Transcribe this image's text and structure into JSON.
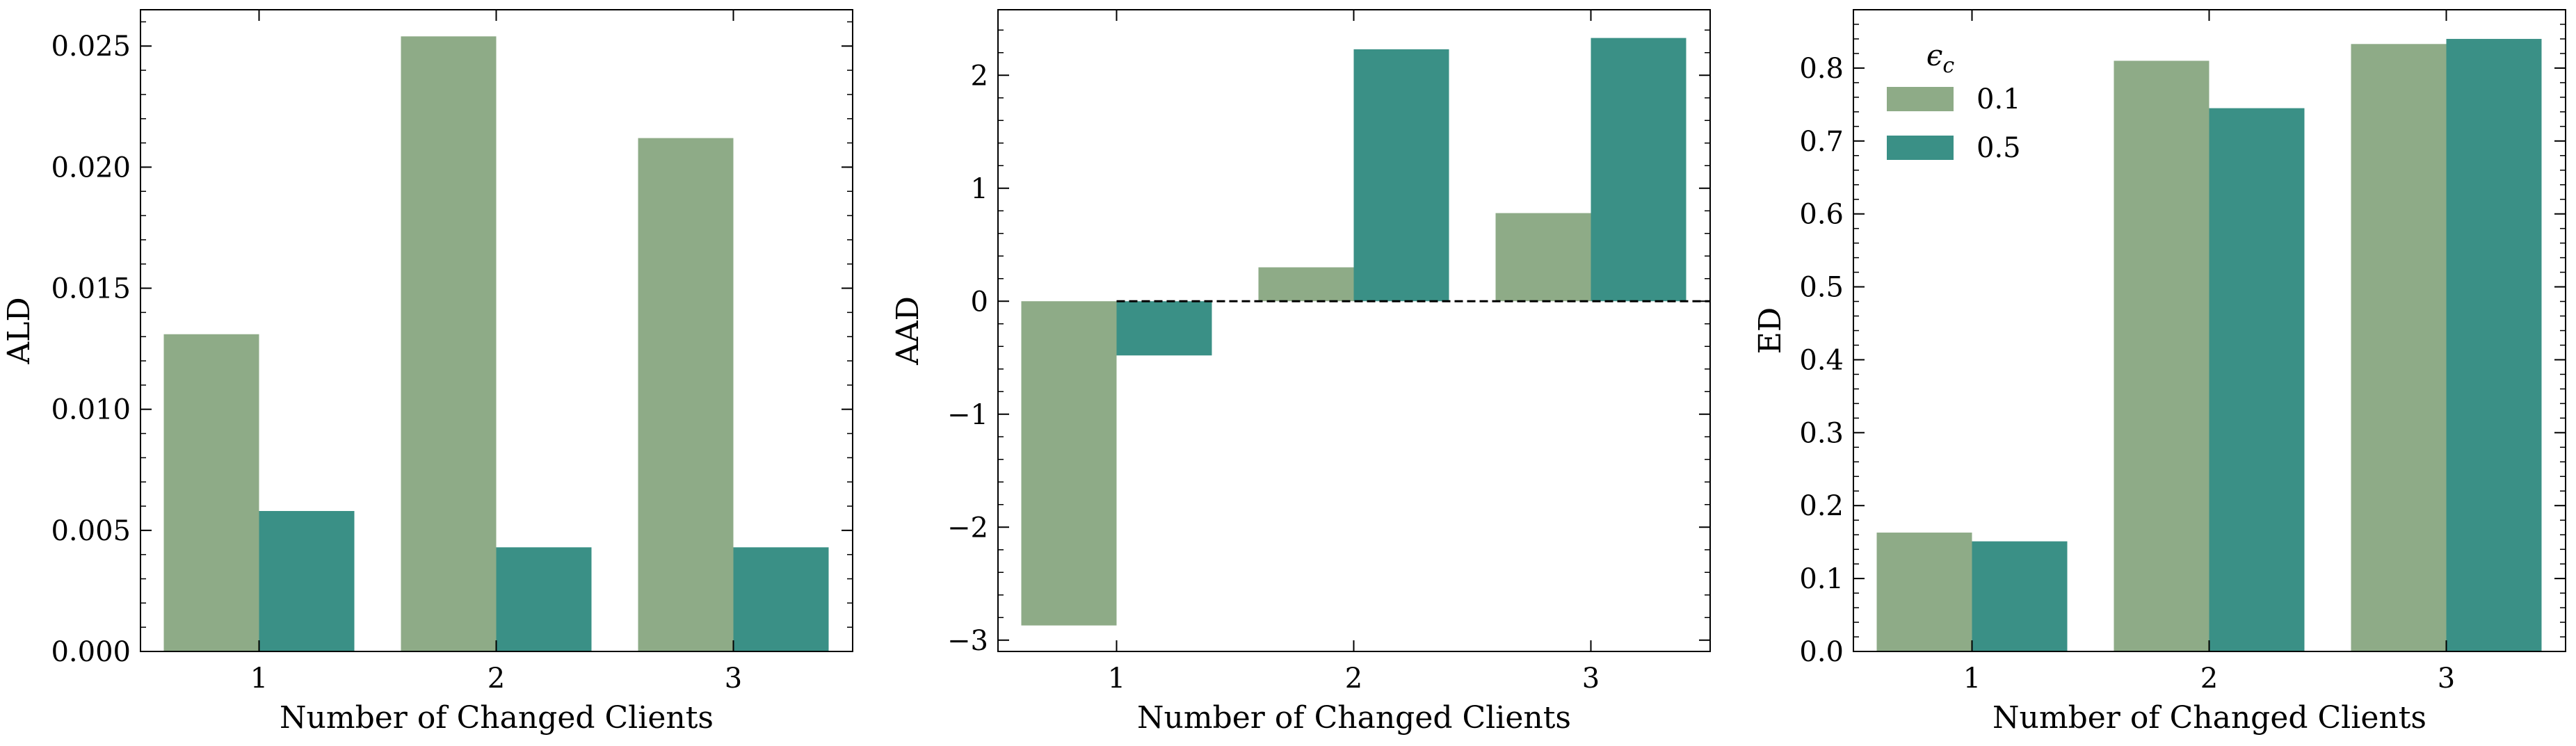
{
  "chart_data": [
    {
      "type": "bar",
      "categories": [
        "1",
        "2",
        "3"
      ],
      "series": [
        {
          "name": "0.1",
          "values": [
            0.0131,
            0.0254,
            0.0212
          ]
        },
        {
          "name": "0.5",
          "values": [
            0.0058,
            0.0043,
            0.0043
          ]
        }
      ],
      "xlabel": "Number of Changed Clients",
      "ylabel": "ALD",
      "ylim": [
        0,
        0.0265
      ],
      "yticks": [
        0.0,
        0.005,
        0.01,
        0.015,
        0.02,
        0.025
      ],
      "ytick_labels": [
        "0.000",
        "0.005",
        "0.010",
        "0.015",
        "0.020",
        "0.025"
      ],
      "grid": false,
      "zero_line": false
    },
    {
      "type": "bar",
      "categories": [
        "1",
        "2",
        "3"
      ],
      "series": [
        {
          "name": "0.1",
          "values": [
            -2.87,
            0.3,
            0.78
          ]
        },
        {
          "name": "0.5",
          "values": [
            -0.48,
            2.23,
            2.33
          ]
        }
      ],
      "xlabel": "Number of Changed Clients",
      "ylabel": "AAD",
      "ylim": [
        -3.1,
        2.58
      ],
      "yticks": [
        -3,
        -2,
        -1,
        0,
        1,
        2
      ],
      "ytick_labels": [
        "−3",
        "−2",
        "−1",
        "0",
        "1",
        "2"
      ],
      "grid": false,
      "zero_line": true
    },
    {
      "type": "bar",
      "categories": [
        "1",
        "2",
        "3"
      ],
      "series": [
        {
          "name": "0.1",
          "values": [
            0.163,
            0.81,
            0.833
          ]
        },
        {
          "name": "0.5",
          "values": [
            0.151,
            0.745,
            0.84
          ]
        }
      ],
      "xlabel": "Number of Changed Clients",
      "ylabel": "ED",
      "ylim": [
        0,
        0.88
      ],
      "yticks": [
        0.0,
        0.1,
        0.2,
        0.3,
        0.4,
        0.5,
        0.6,
        0.7,
        0.8
      ],
      "ytick_labels": [
        "0.0",
        "0.1",
        "0.2",
        "0.3",
        "0.4",
        "0.5",
        "0.6",
        "0.7",
        "0.8"
      ],
      "grid": false,
      "zero_line": false,
      "legend": {
        "title": "ϵ",
        "title_subscript": "c",
        "placement": "top-left"
      }
    }
  ],
  "colors": {
    "series_0.1": "#8eab87",
    "series_0.5": "#3a9086"
  }
}
